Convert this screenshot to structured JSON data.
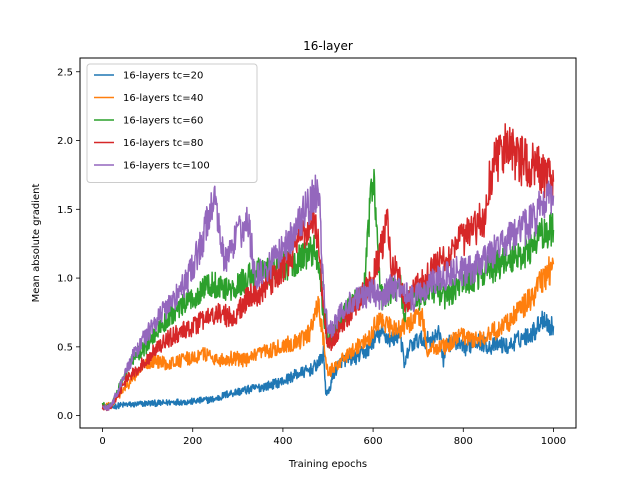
{
  "chart_data": {
    "type": "line",
    "title": "16-layer",
    "xlabel": "Training epochs",
    "ylabel": "Mean absolute gradient",
    "xlim": [
      -50,
      1050
    ],
    "ylim": [
      -0.09,
      2.6
    ],
    "xticks": [
      0,
      200,
      400,
      600,
      800,
      1000
    ],
    "yticks": [
      0.0,
      0.5,
      1.0,
      1.5,
      2.0,
      2.5
    ],
    "grid": false,
    "legend_position": "top-left",
    "series": [
      {
        "name": "16-layers tc=20",
        "color": "#1f77b4",
        "x": [
          0,
          10,
          20,
          30,
          50,
          70,
          100,
          130,
          160,
          190,
          220,
          250,
          280,
          310,
          340,
          370,
          400,
          430,
          460,
          480,
          490,
          495,
          500,
          510,
          520,
          530,
          560,
          590,
          600,
          620,
          640,
          660,
          670,
          680,
          700,
          730,
          750,
          755,
          760,
          780,
          800,
          830,
          860,
          880,
          900,
          920,
          940,
          960,
          970,
          980,
          990,
          1000
        ],
        "y": [
          0.07,
          0.06,
          0.06,
          0.07,
          0.08,
          0.08,
          0.09,
          0.09,
          0.1,
          0.1,
          0.11,
          0.12,
          0.16,
          0.18,
          0.2,
          0.22,
          0.25,
          0.3,
          0.33,
          0.38,
          0.45,
          0.18,
          0.15,
          0.28,
          0.35,
          0.4,
          0.42,
          0.48,
          0.55,
          0.6,
          0.55,
          0.6,
          0.35,
          0.5,
          0.55,
          0.55,
          0.6,
          0.38,
          0.5,
          0.55,
          0.48,
          0.55,
          0.5,
          0.52,
          0.5,
          0.55,
          0.58,
          0.62,
          0.68,
          0.72,
          0.65,
          0.65
        ]
      },
      {
        "name": "16-layers tc=40",
        "color": "#ff7f0e",
        "x": [
          0,
          10,
          20,
          30,
          50,
          70,
          90,
          110,
          140,
          170,
          200,
          230,
          260,
          290,
          320,
          350,
          380,
          410,
          440,
          460,
          470,
          480,
          490,
          500,
          520,
          540,
          560,
          590,
          610,
          630,
          660,
          690,
          710,
          720,
          740,
          760,
          780,
          800,
          830,
          860,
          890,
          920,
          950,
          970,
          990,
          1000
        ],
        "y": [
          0.08,
          0.07,
          0.08,
          0.12,
          0.2,
          0.28,
          0.35,
          0.4,
          0.38,
          0.4,
          0.42,
          0.45,
          0.4,
          0.42,
          0.4,
          0.45,
          0.48,
          0.52,
          0.55,
          0.6,
          0.75,
          0.8,
          0.55,
          0.3,
          0.38,
          0.42,
          0.5,
          0.55,
          0.7,
          0.65,
          0.62,
          0.7,
          0.72,
          0.45,
          0.5,
          0.5,
          0.55,
          0.58,
          0.55,
          0.6,
          0.65,
          0.75,
          0.85,
          0.95,
          1.05,
          1.1
        ]
      },
      {
        "name": "16-layers tc=60",
        "color": "#2ca02c",
        "x": [
          0,
          10,
          20,
          30,
          50,
          70,
          100,
          130,
          160,
          200,
          230,
          260,
          290,
          320,
          350,
          380,
          410,
          440,
          470,
          480,
          490,
          500,
          520,
          540,
          560,
          580,
          590,
          600,
          610,
          620,
          640,
          660,
          670,
          680,
          700,
          720,
          740,
          760,
          790,
          820,
          850,
          880,
          910,
          940,
          970,
          1000
        ],
        "y": [
          0.08,
          0.06,
          0.08,
          0.15,
          0.3,
          0.42,
          0.52,
          0.65,
          0.75,
          0.85,
          0.95,
          0.95,
          0.9,
          1.0,
          1.05,
          1.05,
          1.1,
          1.15,
          1.2,
          1.1,
          0.75,
          0.55,
          0.65,
          0.75,
          0.85,
          0.9,
          1.4,
          1.75,
          1.2,
          0.85,
          0.9,
          0.95,
          0.75,
          0.85,
          0.85,
          0.9,
          0.9,
          0.85,
          0.95,
          1.0,
          1.05,
          1.1,
          1.15,
          1.2,
          1.3,
          1.35
        ]
      },
      {
        "name": "16-layers tc=80",
        "color": "#d62728",
        "x": [
          0,
          10,
          20,
          30,
          50,
          80,
          110,
          140,
          170,
          200,
          230,
          260,
          290,
          320,
          350,
          380,
          410,
          440,
          470,
          480,
          490,
          500,
          520,
          540,
          570,
          600,
          620,
          630,
          640,
          660,
          670,
          700,
          730,
          760,
          790,
          820,
          850,
          860,
          880,
          900,
          930,
          960,
          980,
          1000
        ],
        "y": [
          0.06,
          0.05,
          0.07,
          0.12,
          0.25,
          0.35,
          0.45,
          0.55,
          0.6,
          0.65,
          0.7,
          0.75,
          0.7,
          0.85,
          0.9,
          1.0,
          1.1,
          1.3,
          1.45,
          1.2,
          0.8,
          0.5,
          0.6,
          0.7,
          0.85,
          1.0,
          1.25,
          1.45,
          1.1,
          1.0,
          0.8,
          0.95,
          1.05,
          1.15,
          1.25,
          1.35,
          1.45,
          1.75,
          1.9,
          1.95,
          1.85,
          1.8,
          1.75,
          1.7
        ]
      },
      {
        "name": "16-layers tc=100",
        "color": "#9467bd",
        "x": [
          0,
          10,
          20,
          30,
          50,
          70,
          100,
          130,
          160,
          190,
          220,
          240,
          250,
          270,
          300,
          320,
          340,
          370,
          400,
          430,
          460,
          470,
          480,
          490,
          500,
          520,
          540,
          570,
          600,
          620,
          640,
          660,
          690,
          720,
          750,
          780,
          810,
          840,
          870,
          900,
          930,
          960,
          980,
          1000
        ],
        "y": [
          0.07,
          0.05,
          0.08,
          0.15,
          0.3,
          0.45,
          0.6,
          0.75,
          0.85,
          1.0,
          1.25,
          1.5,
          1.6,
          1.1,
          1.3,
          1.45,
          1.0,
          1.1,
          1.2,
          1.35,
          1.55,
          1.6,
          1.7,
          0.9,
          0.6,
          0.7,
          0.8,
          0.85,
          0.9,
          0.85,
          0.95,
          0.9,
          0.85,
          0.95,
          1.0,
          1.05,
          1.05,
          1.1,
          1.2,
          1.3,
          1.35,
          1.45,
          1.55,
          1.6
        ]
      }
    ]
  }
}
